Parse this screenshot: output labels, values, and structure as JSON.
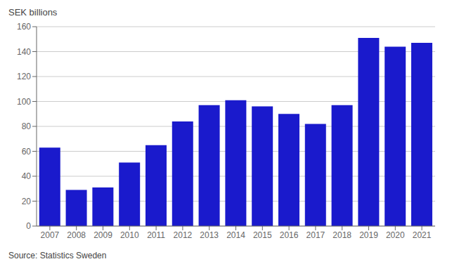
{
  "chart_data": {
    "type": "bar",
    "ylabel": "SEK billions",
    "annotations": [
      "Source: Statistics Sweden"
    ],
    "categories": [
      "2007",
      "2008",
      "2009",
      "2010",
      "2011",
      "2012",
      "2013",
      "2014",
      "2015",
      "2016",
      "2017",
      "2018",
      "2019",
      "2020",
      "2021"
    ],
    "values": [
      63,
      29,
      31,
      51,
      65,
      84,
      97,
      101,
      96,
      90,
      82,
      97,
      151,
      144,
      147
    ],
    "color": "#1a1acc",
    "ylim": [
      0,
      160
    ],
    "yticks": [
      0,
      20,
      40,
      60,
      80,
      100,
      120,
      140,
      160
    ],
    "grid": true
  }
}
